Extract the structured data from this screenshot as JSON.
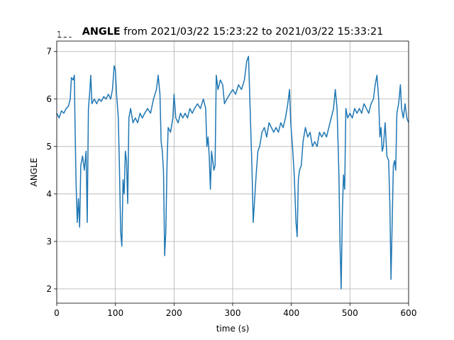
{
  "chart_data": {
    "type": "line",
    "title": "ANGLE",
    "title_suffix": "from 2021/03/22 15:23:22 to 2021/03/22 15:33:21",
    "offset_label": "1e6",
    "xlabel": "time (s)",
    "ylabel": "ANGLE",
    "xlim": [
      0,
      600
    ],
    "xticks": [
      0,
      100,
      200,
      300,
      400,
      500,
      600
    ],
    "ylim": [
      1.7,
      7.22
    ],
    "yticks": [
      2,
      3,
      4,
      5,
      6,
      7
    ],
    "grid": true,
    "series": [
      {
        "name": "ANGLE",
        "color": "#1f77b4",
        "x": [
          0,
          4,
          8,
          12,
          16,
          20,
          23,
          25,
          28,
          30,
          31,
          33,
          35,
          37,
          39,
          41,
          44,
          47,
          50,
          52,
          54,
          56,
          58,
          60,
          64,
          68,
          72,
          76,
          80,
          84,
          88,
          92,
          95,
          98,
          100,
          102,
          105,
          107,
          109,
          111,
          113,
          115,
          117,
          119,
          121,
          123,
          126,
          130,
          134,
          138,
          142,
          146,
          150,
          155,
          160,
          165,
          170,
          173,
          176,
          178,
          180,
          182,
          184,
          186,
          188,
          190,
          194,
          198,
          200,
          203,
          207,
          211,
          215,
          219,
          223,
          227,
          231,
          235,
          240,
          245,
          250,
          254,
          256,
          258,
          260,
          262,
          264,
          266,
          268,
          270,
          272,
          275,
          279,
          283,
          286,
          290,
          295,
          300,
          305,
          310,
          315,
          320,
          324,
          327,
          329,
          331,
          333,
          335,
          337,
          340,
          343,
          346,
          350,
          354,
          358,
          362,
          366,
          370,
          374,
          378,
          382,
          386,
          390,
          394,
          397,
          399,
          402,
          405,
          408,
          410,
          412,
          414,
          417,
          420,
          424,
          428,
          432,
          436,
          440,
          444,
          448,
          452,
          456,
          460,
          464,
          468,
          472,
          475,
          478,
          481,
          483,
          485,
          487,
          489,
          491,
          493,
          496,
          500,
          504,
          508,
          512,
          516,
          520,
          524,
          528,
          532,
          536,
          540,
          543,
          546,
          549,
          551,
          553,
          555,
          557,
          560,
          563,
          566,
          568,
          570,
          572,
          574,
          576,
          578,
          580,
          583,
          586,
          588,
          591,
          594,
          597,
          600
        ],
        "values": [
          5.7,
          5.6,
          5.75,
          5.7,
          5.8,
          5.85,
          6.0,
          6.45,
          6.4,
          6.5,
          5.6,
          4.2,
          3.4,
          3.9,
          3.3,
          4.6,
          4.8,
          4.5,
          4.9,
          3.4,
          5.8,
          6.1,
          6.5,
          5.9,
          6.0,
          5.9,
          6.0,
          5.95,
          6.05,
          6.0,
          6.1,
          6.0,
          6.2,
          6.7,
          6.6,
          6.1,
          5.6,
          4.5,
          3.2,
          2.9,
          4.3,
          4.0,
          4.9,
          4.7,
          3.8,
          5.6,
          5.8,
          5.5,
          5.6,
          5.5,
          5.7,
          5.6,
          5.7,
          5.8,
          5.7,
          6.0,
          6.2,
          6.5,
          6.1,
          5.1,
          4.9,
          4.5,
          2.7,
          3.2,
          4.6,
          5.4,
          5.3,
          5.6,
          6.1,
          5.6,
          5.5,
          5.7,
          5.6,
          5.7,
          5.6,
          5.8,
          5.7,
          5.8,
          5.9,
          5.8,
          6.0,
          5.8,
          5.0,
          5.2,
          4.8,
          4.1,
          4.9,
          4.7,
          4.5,
          4.6,
          6.5,
          6.2,
          6.4,
          6.3,
          5.9,
          6.0,
          6.1,
          6.2,
          6.1,
          6.3,
          6.2,
          6.4,
          6.8,
          6.9,
          6.1,
          5.3,
          4.5,
          3.4,
          3.8,
          4.4,
          4.9,
          5.0,
          5.3,
          5.4,
          5.2,
          5.5,
          5.4,
          5.3,
          5.4,
          5.3,
          5.5,
          5.4,
          5.6,
          5.9,
          6.2,
          5.5,
          5.0,
          4.4,
          3.4,
          3.1,
          4.3,
          4.5,
          4.6,
          5.1,
          5.4,
          5.2,
          5.3,
          5.0,
          5.1,
          5.0,
          5.3,
          5.2,
          5.3,
          5.2,
          5.4,
          5.6,
          5.8,
          6.2,
          5.8,
          4.5,
          3.0,
          2.0,
          3.6,
          4.4,
          4.1,
          5.8,
          5.6,
          5.7,
          5.6,
          5.8,
          5.7,
          5.8,
          5.7,
          5.9,
          5.8,
          5.7,
          5.9,
          6.0,
          6.3,
          6.5,
          6.0,
          5.2,
          5.4,
          4.9,
          5.0,
          5.5,
          4.8,
          4.7,
          3.8,
          2.2,
          3.4,
          4.6,
          4.7,
          4.5,
          5.7,
          5.9,
          6.3,
          5.8,
          5.6,
          5.9,
          5.6,
          5.5
        ]
      }
    ]
  }
}
